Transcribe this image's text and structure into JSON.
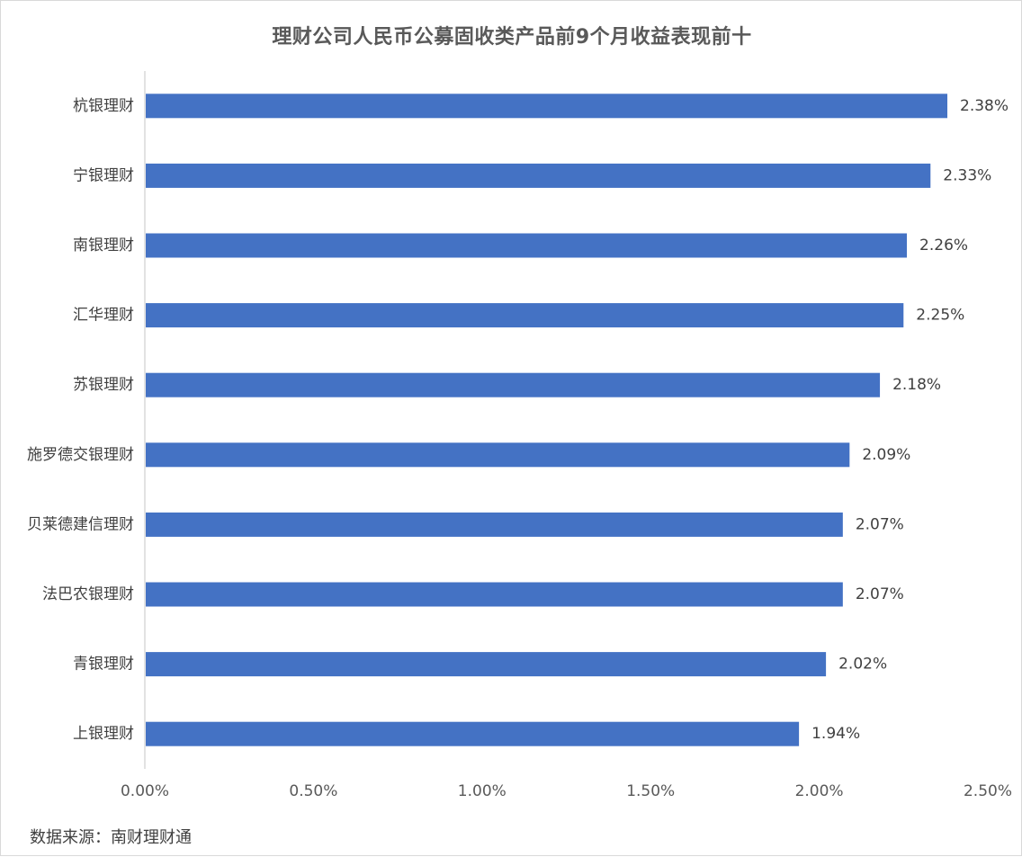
{
  "chart_data": {
    "type": "bar",
    "orientation": "horizontal",
    "title": "理财公司人民币公募固收类产品前9个月收益表现前十",
    "xlabel": "",
    "ylabel": "",
    "categories": [
      "杭银理财",
      "宁银理财",
      "南银理财",
      "汇华理财",
      "苏银理财",
      "施罗德交银理财",
      "贝莱德建信理财",
      "法巴农银理财",
      "青银理财",
      "上银理财"
    ],
    "values": [
      2.38,
      2.33,
      2.26,
      2.25,
      2.18,
      2.09,
      2.07,
      2.07,
      2.02,
      1.94
    ],
    "value_labels": [
      "2.38%",
      "2.33%",
      "2.26%",
      "2.25%",
      "2.18%",
      "2.09%",
      "2.07%",
      "2.07%",
      "2.02%",
      "1.94%"
    ],
    "xlim": [
      0,
      2.5
    ],
    "x_ticks": [
      0,
      0.5,
      1.0,
      1.5,
      2.0,
      2.5
    ],
    "x_tick_labels": [
      "0.00%",
      "0.50%",
      "1.00%",
      "1.50%",
      "2.00%",
      "2.50%"
    ],
    "grid": false,
    "legend": "none",
    "bar_color": "#4472c4"
  },
  "footer": {
    "source": "数据来源：南财理财通"
  }
}
